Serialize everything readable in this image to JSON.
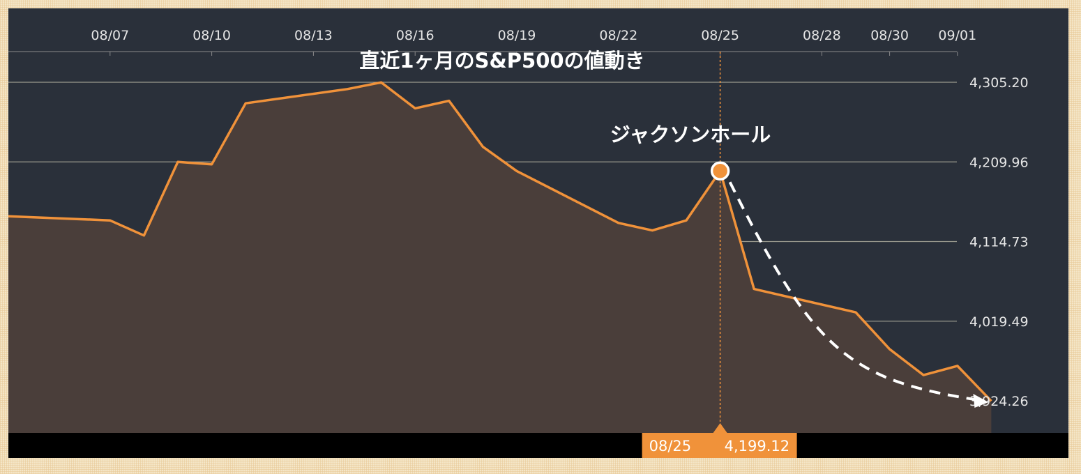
{
  "chart_data": {
    "type": "area",
    "title": "直近1ヶ月のS&P500の値動き",
    "x_tick_labels": [
      "08/07",
      "08/10",
      "08/13",
      "08/16",
      "08/19",
      "08/22",
      "08/25",
      "08/28",
      "08/30",
      "09/01"
    ],
    "y_tick_labels": [
      "4,305.20",
      "4,209.96",
      "4,114.73",
      "4,019.49",
      "3,924.26"
    ],
    "y_ticks": [
      4305.2,
      4209.96,
      4114.73,
      4019.49,
      3924.26
    ],
    "ylim": [
      3887.0,
      4355.0
    ],
    "x": [
      "08/04",
      "08/07",
      "08/08",
      "08/09",
      "08/10",
      "08/11",
      "08/14",
      "08/15",
      "08/16",
      "08/17",
      "08/18",
      "08/19",
      "08/22",
      "08/23",
      "08/24",
      "08/25",
      "08/26",
      "08/29",
      "08/30",
      "08/31",
      "09/01",
      "09/02"
    ],
    "values": [
      4145,
      4140,
      4122,
      4210,
      4207,
      4280,
      4297,
      4305,
      4274,
      4283,
      4228,
      4199,
      4137,
      4128,
      4140,
      4199,
      4058,
      4030,
      3986,
      3955,
      3966,
      3924
    ],
    "series_color": "#f0923a",
    "annotation": {
      "label": "ジャクソンホール",
      "x": "08/25",
      "y": 4199.12
    },
    "trend_arrow": {
      "from": {
        "x": "08/25",
        "y": 4199.12
      },
      "to": {
        "x": "09/02",
        "y": 3924.26
      },
      "style": "dashed"
    },
    "crosshair": {
      "x": "08/25",
      "date_label": "08/25",
      "value_label": "4,199.12"
    },
    "grid": true
  },
  "colors": {
    "plot_background": "#2a303a",
    "area_fill": "#4a3e3a",
    "line": "#f0923a",
    "bottom_bar": "#000000",
    "page_background": "#f4e6c8"
  }
}
